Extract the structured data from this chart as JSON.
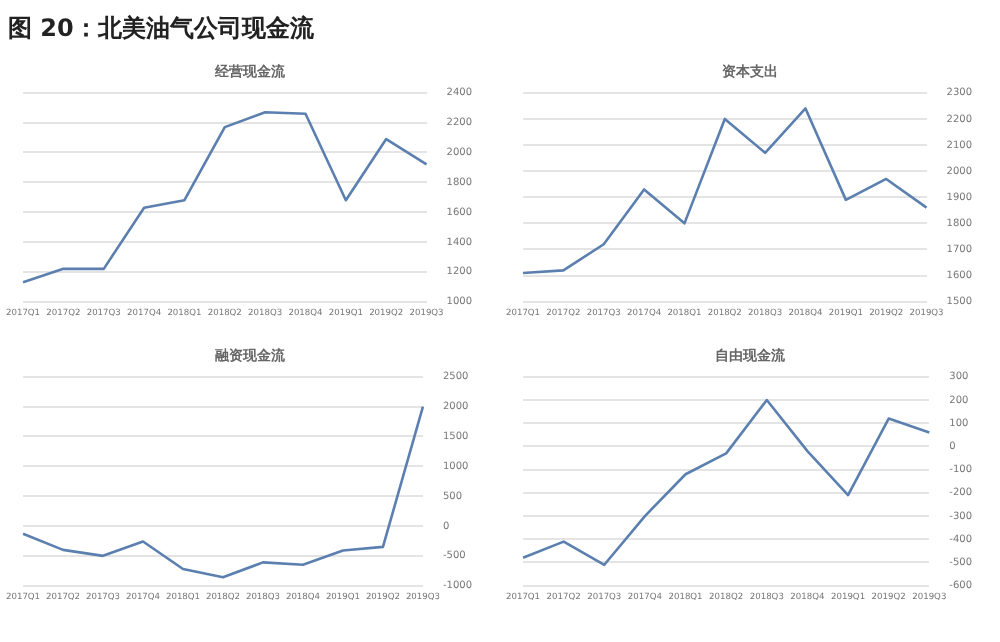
{
  "chart_data": [
    {
      "type": "line",
      "title": "经营现金流",
      "annotations": [
        "图 20：北美油气公司现金流"
      ],
      "categories": [
        "2017Q1",
        "2017Q2",
        "2017Q3",
        "2017Q4",
        "2018Q1",
        "2018Q2",
        "2018Q3",
        "2018Q4",
        "2019Q1",
        "2019Q2",
        "2019Q3"
      ],
      "series": [
        {
          "color": "#5b7fae",
          "values": [
            1130,
            1220,
            1220,
            1630,
            1680,
            2170,
            2270,
            2260,
            1680,
            2090,
            1920
          ]
        }
      ],
      "ylim": [
        1000,
        2400
      ],
      "yticks": [
        1000,
        1200,
        1400,
        1600,
        1800,
        2000,
        2200,
        2400
      ],
      "grid": "y",
      "legend": false
    },
    {
      "type": "line",
      "title": "资本支出",
      "categories": [
        "2017Q1",
        "2017Q2",
        "2017Q3",
        "2017Q4",
        "2018Q1",
        "2018Q2",
        "2018Q3",
        "2018Q4",
        "2019Q1",
        "2019Q2",
        "2019Q3"
      ],
      "series": [
        {
          "color": "#5b7fae",
          "values": [
            1610,
            1620,
            1720,
            1930,
            1800,
            2200,
            2070,
            2240,
            1890,
            1970,
            1860
          ]
        }
      ],
      "ylim": [
        1500,
        2300
      ],
      "yticks": [
        1500,
        1600,
        1700,
        1800,
        1900,
        2000,
        2100,
        2200,
        2300
      ],
      "grid": "y",
      "legend": false
    },
    {
      "type": "line",
      "title": "融资现金流",
      "categories": [
        "2017Q1",
        "2017Q2",
        "2017Q3",
        "2017Q4",
        "2018Q1",
        "2018Q2",
        "2018Q3",
        "2018Q4",
        "2019Q1",
        "2019Q2",
        "2019Q3"
      ],
      "series": [
        {
          "color": "#5b7fae",
          "values": [
            -130,
            -400,
            -500,
            -260,
            -720,
            -860,
            -610,
            -650,
            -410,
            -350,
            2000
          ]
        }
      ],
      "ylim": [
        -1000,
        2500
      ],
      "yticks": [
        -1000,
        -500,
        0,
        500,
        1000,
        1500,
        2000,
        2500
      ],
      "grid": "y",
      "legend": false
    },
    {
      "type": "line",
      "title": "自由现金流",
      "categories": [
        "2017Q1",
        "2017Q2",
        "2017Q3",
        "2017Q4",
        "2018Q1",
        "2018Q2",
        "2018Q3",
        "2018Q4",
        "2019Q1",
        "2019Q2",
        "2019Q3"
      ],
      "series": [
        {
          "color": "#5b7fae",
          "values": [
            -480,
            -410,
            -510,
            -300,
            -120,
            -30,
            200,
            -20,
            -210,
            120,
            60
          ]
        }
      ],
      "ylim": [
        -600,
        300
      ],
      "yticks": [
        -600,
        -500,
        -400,
        -300,
        -200,
        -100,
        0,
        100,
        200,
        300
      ],
      "grid": "y",
      "legend": false
    }
  ]
}
